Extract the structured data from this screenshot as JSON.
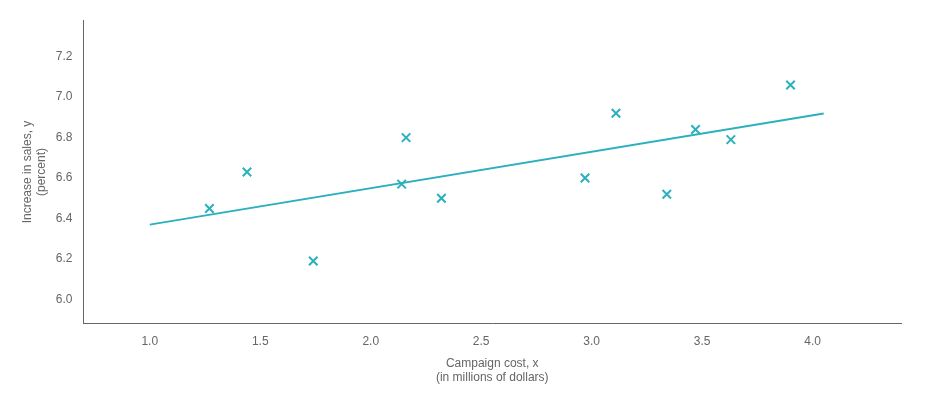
{
  "chart_data": {
    "type": "scatter",
    "xlabel": "Campaign cost, x\n(in millions of dollars)",
    "ylabel": "Increase in sales, y\n(percent)",
    "xlim": [
      0.7,
      4.4
    ],
    "ylim": [
      5.88,
      7.38
    ],
    "xticks": [
      {
        "value": 1,
        "label": "1.0"
      },
      1.5,
      {
        "value": 2,
        "label": "2.0"
      },
      2.5,
      {
        "value": 3,
        "label": "3.0"
      },
      3.5,
      {
        "value": 4,
        "label": "4.0"
      }
    ],
    "yticks": [
      {
        "value": 6,
        "label": "6.0"
      },
      6.2,
      6.4,
      6.6,
      6.8,
      {
        "value": 7,
        "label": "7.0"
      },
      7.2
    ],
    "grid": false,
    "series": [
      {
        "type": "scatter",
        "marker": "x",
        "color": "#2ab0be",
        "x": [
          2.16,
          2.14,
          3.47,
          2.32,
          1.27,
          3.34,
          2.97,
          3.11,
          3.63,
          3.9,
          1.74,
          1.44
        ],
        "values": [
          6.8,
          6.57,
          6.84,
          6.5,
          6.45,
          6.52,
          6.6,
          6.92,
          6.79,
          7.06,
          6.19,
          6.63
        ]
      },
      {
        "type": "line",
        "color": "#2ab0be",
        "x": [
          1.0,
          4.05
        ],
        "values": [
          6.37,
          6.919
        ]
      }
    ]
  }
}
